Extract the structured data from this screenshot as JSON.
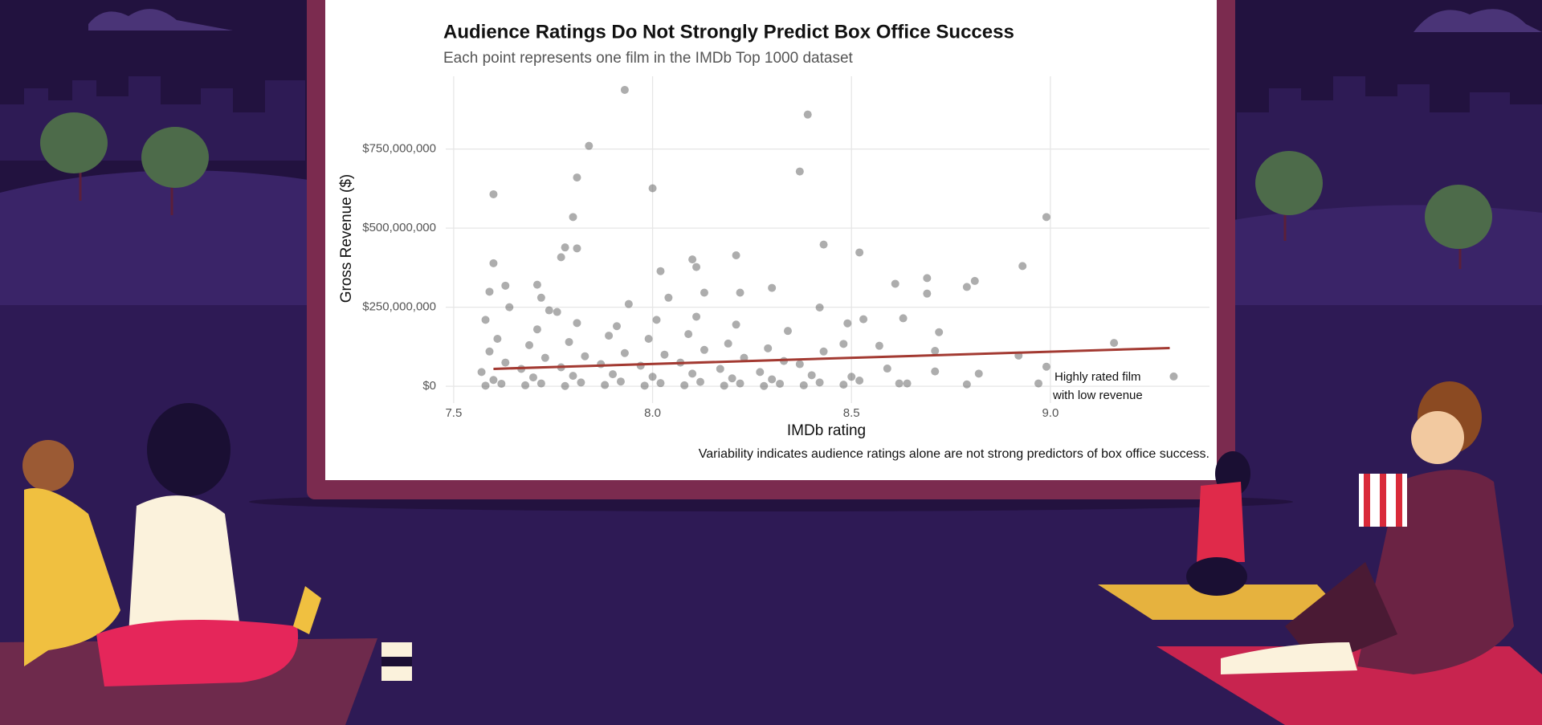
{
  "chart_data": {
    "type": "scatter",
    "title": "Audience Ratings Do Not Strongly Predict Box Office Success",
    "subtitle": "Each point represents one film in the IMDb Top 1000 dataset",
    "x_label": "IMDb rating",
    "y_label": "Gross Revenue ($)",
    "caption": "Variability indicates audience ratings alone are not strong predictors of box office success.",
    "annotation": [
      "Highly rated film",
      "with low revenue"
    ],
    "color": "#4a4a4a",
    "x": [
      7.93,
      8.39,
      7.84,
      8.37,
      7.81,
      8.0,
      7.6,
      8.99,
      7.8,
      8.43,
      8.52,
      8.21,
      7.78,
      7.81,
      7.77,
      8.93,
      7.6,
      8.1,
      8.11,
      8.02,
      8.69,
      8.81,
      8.61,
      8.79,
      8.69,
      8.3,
      8.13,
      8.22,
      7.71,
      7.63,
      7.59,
      9.16,
      9.31,
      8.97,
      8.99,
      8.92,
      8.82,
      8.71,
      8.72,
      8.63,
      8.53,
      8.48,
      8.42,
      8.49,
      8.57,
      8.59,
      8.62,
      8.64,
      8.79,
      8.71,
      7.58,
      7.62,
      7.6,
      7.57,
      7.63,
      7.59,
      7.61,
      7.58,
      7.64,
      7.68,
      7.72,
      7.7,
      7.67,
      7.73,
      7.69,
      7.71,
      7.74,
      7.72,
      7.78,
      7.82,
      7.8,
      7.77,
      7.83,
      7.79,
      7.81,
      7.76,
      7.88,
      7.92,
      7.9,
      7.87,
      7.93,
      7.89,
      7.91,
      7.94,
      7.98,
      8.02,
      8.0,
      7.97,
      8.03,
      7.99,
      8.01,
      8.04,
      8.08,
      8.12,
      8.1,
      8.07,
      8.13,
      8.09,
      8.11,
      8.18,
      8.22,
      8.2,
      8.17,
      8.23,
      8.19,
      8.21,
      8.28,
      8.32,
      8.3,
      8.27,
      8.33,
      8.29,
      8.34,
      8.38,
      8.42,
      8.4,
      8.37,
      8.43,
      8.48,
      8.52,
      8.5
    ],
    "values": [
      937000000,
      859000000,
      760000000,
      679000000,
      660000000,
      626000000,
      607000000,
      535000000,
      535000000,
      448000000,
      423000000,
      414000000,
      439000000,
      436000000,
      408000000,
      380000000,
      389000000,
      401000000,
      377000000,
      364000000,
      342000000,
      333000000,
      324000000,
      314000000,
      293000000,
      311000000,
      296000000,
      296000000,
      321000000,
      318000000,
      299000000,
      137000000,
      31000000,
      9000000,
      62000000,
      97000000,
      40000000,
      112000000,
      171000000,
      215000000,
      212000000,
      134000000,
      249000000,
      199000000,
      128000000,
      56000000,
      9000000,
      9000000,
      6000000,
      47000000,
      2000000,
      8000000,
      20000000,
      45000000,
      75000000,
      110000000,
      150000000,
      210000000,
      250000000,
      3000000,
      9000000,
      28000000,
      55000000,
      90000000,
      130000000,
      180000000,
      240000000,
      280000000,
      1000000,
      12000000,
      33000000,
      60000000,
      95000000,
      140000000,
      200000000,
      235000000,
      4000000,
      15000000,
      38000000,
      70000000,
      105000000,
      160000000,
      190000000,
      260000000,
      2000000,
      10000000,
      30000000,
      65000000,
      100000000,
      150000000,
      210000000,
      280000000,
      3000000,
      14000000,
      40000000,
      75000000,
      115000000,
      165000000,
      220000000,
      2000000,
      9000000,
      25000000,
      55000000,
      90000000,
      135000000,
      195000000,
      1000000,
      8000000,
      22000000,
      45000000,
      80000000,
      120000000,
      175000000,
      3000000,
      12000000,
      35000000,
      70000000,
      110000000,
      5000000,
      18000000,
      30000000
    ],
    "trend": {
      "x": [
        7.6,
        9.3
      ],
      "values": [
        55000000,
        121000000
      ],
      "color": "#a33a32"
    },
    "xlim": [
      7.48,
      9.4
    ],
    "ylim": [
      -53000000,
      980000000
    ],
    "xticks": [
      7.5,
      {
        "value": 8,
        "label": "8.0"
      },
      8.5,
      {
        "value": 9,
        "label": "9.0"
      }
    ],
    "yticks": [
      {
        "value": 0,
        "label": "$0"
      },
      {
        "value": 250000000,
        "label": "$250,000,000"
      },
      {
        "value": 500000000,
        "label": "$500,000,000"
      },
      {
        "value": 750000000,
        "label": "$750,000,000"
      }
    ],
    "grid": true
  }
}
